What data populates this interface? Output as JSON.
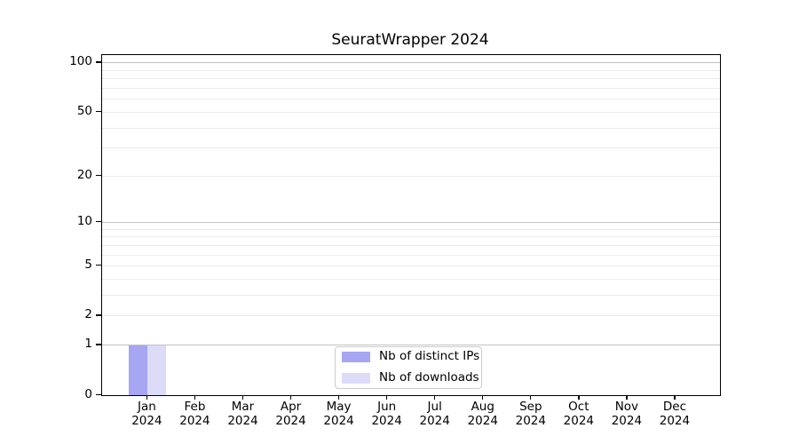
{
  "chart_data": {
    "type": "bar",
    "title": "SeuratWrapper 2024",
    "year": "2024",
    "categories": [
      "Jan",
      "Feb",
      "Mar",
      "Apr",
      "May",
      "Jun",
      "Jul",
      "Aug",
      "Sep",
      "Oct",
      "Nov",
      "Dec"
    ],
    "series": [
      {
        "name": "Nb of distinct IPs",
        "color": "#a6a6f2",
        "values": [
          1,
          0,
          0,
          0,
          0,
          0,
          0,
          0,
          0,
          0,
          0,
          0
        ]
      },
      {
        "name": "Nb of downloads",
        "color": "#dcdcf8",
        "values": [
          1,
          0,
          0,
          0,
          0,
          0,
          0,
          0,
          0,
          0,
          0,
          0
        ]
      }
    ],
    "y_axis": {
      "scale": "log10(1+x)",
      "tick_values": [
        0,
        1,
        2,
        5,
        10,
        20,
        50,
        100
      ],
      "major_gridlines": [
        1,
        10,
        100
      ],
      "minor_gridlines": [
        2,
        3,
        4,
        5,
        6,
        7,
        8,
        9,
        20,
        30,
        40,
        50,
        60,
        70,
        80,
        90
      ],
      "top_value": 113
    },
    "x_axis": {
      "label_line2": "2024"
    },
    "legend": {
      "position": "lower center"
    },
    "grid": true,
    "colors": {
      "major_grid": "#c3c3c3",
      "minor_grid": "#ececec",
      "spine": "#000000",
      "background": "#ffffff"
    }
  }
}
